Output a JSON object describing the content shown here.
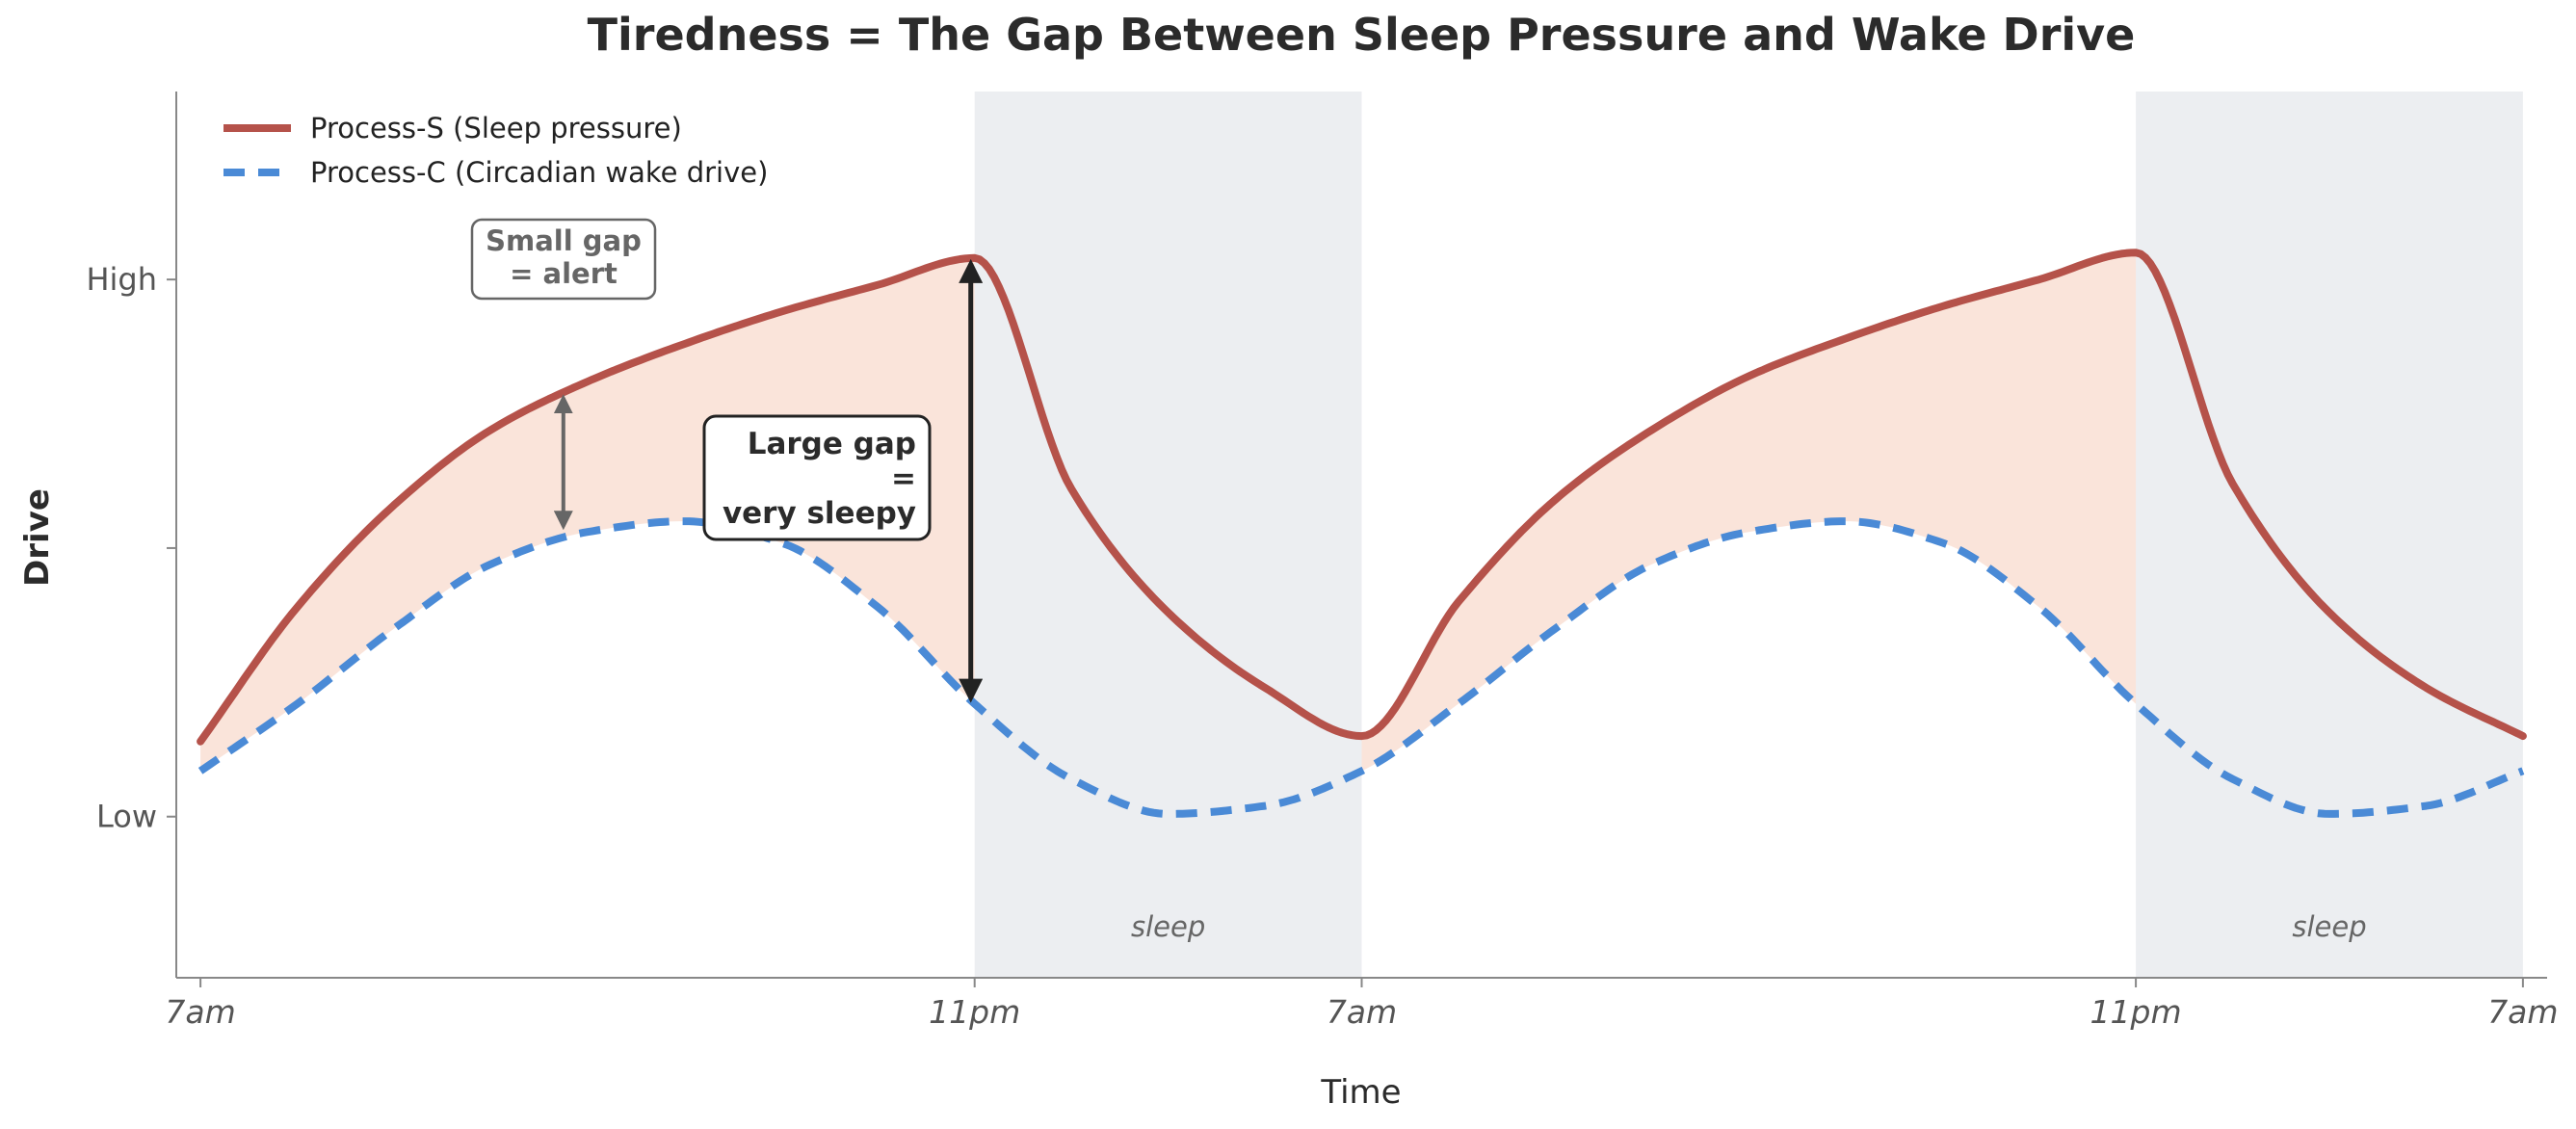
{
  "chart_data": {
    "type": "line",
    "title": "Tiredness = The Gap Between Sleep Pressure and Wake Drive",
    "xlabel": "Time",
    "ylabel": "Drive",
    "x_ticks": [
      {
        "label": "7am",
        "hour": 0
      },
      {
        "label": "11pm",
        "hour": 16
      },
      {
        "label": "7am",
        "hour": 24
      },
      {
        "label": "11pm",
        "hour": 40
      },
      {
        "label": "7am",
        "hour": 48
      }
    ],
    "y_ticks": [
      {
        "label": "High",
        "value": 1.0
      },
      {
        "label": "",
        "value": 0.5
      },
      {
        "label": "Low",
        "value": 0.0
      }
    ],
    "xlim": [
      -0.5,
      48.5
    ],
    "ylim": [
      -0.3,
      1.35
    ],
    "grid": false,
    "legend_position": "top-left",
    "series": [
      {
        "name": "Process-S (Sleep pressure)",
        "style": "solid",
        "color": "#b5524a",
        "hours": [
          0,
          2,
          4,
          6,
          8,
          10,
          12,
          14,
          16,
          18,
          20,
          22,
          24,
          26,
          28,
          30,
          32,
          34,
          36,
          38,
          40,
          42,
          44,
          46,
          48
        ],
        "values": [
          0.14,
          0.39,
          0.58,
          0.72,
          0.81,
          0.88,
          0.94,
          0.99,
          1.04,
          0.61,
          0.38,
          0.24,
          0.15,
          0.4,
          0.59,
          0.72,
          0.82,
          0.89,
          0.95,
          1.0,
          1.05,
          0.62,
          0.38,
          0.24,
          0.15
        ]
      },
      {
        "name": "Process-C (Circadian wake drive)",
        "style": "dashed",
        "color": "#4a8ad6",
        "hours": [
          0,
          2,
          4,
          6,
          8,
          10,
          12,
          14,
          16,
          18,
          20,
          22,
          24,
          26,
          28,
          30,
          32,
          34,
          36,
          38,
          40,
          42,
          44,
          46,
          48
        ],
        "values": [
          0.085,
          0.21,
          0.35,
          0.47,
          0.53,
          0.55,
          0.51,
          0.39,
          0.21,
          0.07,
          0.005,
          0.02,
          0.085,
          0.21,
          0.35,
          0.47,
          0.53,
          0.55,
          0.51,
          0.39,
          0.21,
          0.07,
          0.005,
          0.02,
          0.085
        ]
      }
    ],
    "sleep_periods": [
      {
        "label": "sleep",
        "start_hour": 16,
        "end_hour": 24
      },
      {
        "label": "sleep",
        "start_hour": 40,
        "end_hour": 48
      }
    ],
    "annotations": [
      {
        "lines": [
          "Small gap",
          "= alert"
        ],
        "hour": 7.5,
        "from": 0.53,
        "to": 0.79
      },
      {
        "lines": [
          "Large gap",
          "=",
          "very sleepy"
        ],
        "hour": 16,
        "from": 0.21,
        "to": 1.04
      }
    ],
    "colors": {
      "gap_fill": "#f3c4ad",
      "sleep_band": "#dfe2e7",
      "axis": "#888888",
      "small_arrow": "#666666",
      "large_arrow": "#222222"
    }
  }
}
